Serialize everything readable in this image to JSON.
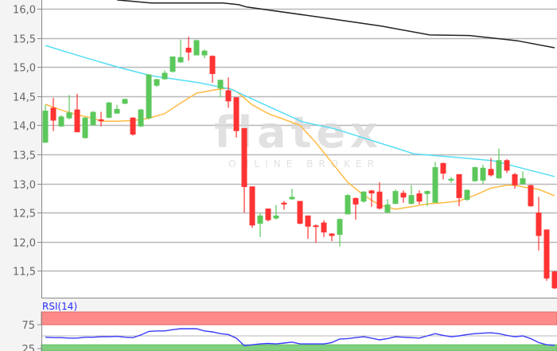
{
  "watermark": {
    "logo": "flatex",
    "tagline": "ONLINE BROKER"
  },
  "colors": {
    "up": "#5cc85c",
    "down": "#ff3333",
    "ma_short": "#ffbb44",
    "ma_mid": "#55ddf5",
    "ma_long": "#222222",
    "rsi_line": "#3a3aff",
    "rsi_overbought": "#ff8a8a",
    "rsi_oversold": "#7fd07f"
  },
  "chart_data": [
    {
      "type": "candlestick",
      "ylim": [
        11.04,
        16.15
      ],
      "yticks": [
        "16,0",
        "15,5",
        "15,0",
        "14,5",
        "14,0",
        "13,5",
        "13,0",
        "12,5",
        "12,0",
        "11,5"
      ],
      "ytick_values": [
        16.0,
        15.5,
        15.0,
        14.5,
        14.0,
        13.5,
        13.0,
        12.5,
        12.0,
        11.5
      ],
      "grid": true,
      "candles": [
        [
          13.7,
          14.35,
          13.7,
          14.25
        ],
        [
          14.3,
          14.47,
          13.9,
          14.08
        ],
        [
          13.98,
          14.17,
          13.97,
          14.15
        ],
        [
          14.12,
          14.52,
          14.1,
          14.22
        ],
        [
          14.27,
          14.54,
          13.88,
          13.88
        ],
        [
          13.78,
          14.14,
          13.77,
          14.13
        ],
        [
          14.0,
          14.24,
          14.0,
          14.23
        ],
        [
          14.1,
          14.23,
          13.98,
          14.07
        ],
        [
          14.13,
          14.4,
          14.12,
          14.39
        ],
        [
          14.2,
          14.35,
          14.2,
          14.28
        ],
        [
          14.37,
          14.46,
          14.36,
          14.45
        ],
        [
          14.13,
          14.14,
          13.82,
          13.84
        ],
        [
          13.98,
          14.28,
          13.97,
          14.27
        ],
        [
          14.12,
          14.88,
          14.1,
          14.87
        ],
        [
          14.68,
          14.8,
          14.66,
          14.79
        ],
        [
          14.79,
          14.94,
          14.78,
          14.9
        ],
        [
          14.92,
          15.18,
          14.9,
          15.18
        ],
        [
          15.08,
          15.47,
          15.07,
          15.17
        ],
        [
          15.33,
          15.52,
          15.11,
          15.25
        ],
        [
          15.2,
          15.47,
          15.2,
          15.46
        ],
        [
          15.2,
          15.3,
          15.15,
          15.28
        ],
        [
          15.19,
          15.2,
          14.73,
          14.88
        ],
        [
          14.63,
          14.78,
          14.48,
          14.78
        ],
        [
          14.6,
          14.82,
          14.3,
          14.41
        ],
        [
          14.48,
          14.48,
          13.79,
          13.9
        ],
        [
          13.95,
          13.95,
          12.5,
          12.94
        ],
        [
          12.95,
          12.95,
          12.24,
          12.28
        ],
        [
          12.31,
          12.49,
          12.08,
          12.45
        ],
        [
          12.57,
          12.57,
          12.35,
          12.37
        ],
        [
          12.4,
          12.63,
          12.38,
          12.45
        ],
        [
          12.67,
          12.7,
          12.55,
          12.64
        ],
        [
          12.73,
          12.91,
          12.72,
          12.77
        ],
        [
          12.7,
          12.7,
          12.3,
          12.31
        ],
        [
          12.45,
          12.45,
          12.05,
          12.26
        ],
        [
          12.28,
          12.3,
          11.98,
          12.26
        ],
        [
          12.33,
          12.37,
          12.08,
          12.16
        ],
        [
          12.14,
          12.15,
          12.01,
          12.1
        ],
        [
          12.12,
          12.4,
          11.92,
          12.39
        ],
        [
          12.47,
          12.82,
          12.47,
          12.8
        ],
        [
          12.75,
          12.76,
          12.38,
          12.64
        ],
        [
          12.69,
          12.87,
          12.67,
          12.86
        ],
        [
          12.88,
          12.89,
          12.6,
          12.83
        ],
        [
          12.86,
          13.02,
          12.55,
          12.57
        ],
        [
          12.5,
          12.73,
          12.5,
          12.64
        ],
        [
          12.65,
          12.9,
          12.65,
          12.87
        ],
        [
          12.84,
          12.88,
          12.67,
          12.76
        ],
        [
          12.65,
          12.97,
          12.64,
          12.8
        ],
        [
          12.83,
          12.88,
          12.64,
          12.69
        ],
        [
          12.82,
          12.88,
          12.61,
          12.87
        ],
        [
          12.67,
          13.37,
          12.67,
          13.28
        ],
        [
          13.35,
          13.36,
          13.07,
          13.17
        ],
        [
          13.05,
          13.11,
          13.01,
          13.08
        ],
        [
          13.16,
          13.16,
          12.61,
          12.75
        ],
        [
          12.72,
          12.9,
          12.7,
          12.89
        ],
        [
          13.04,
          13.29,
          13.03,
          13.28
        ],
        [
          13.05,
          13.32,
          12.99,
          13.27
        ],
        [
          13.25,
          13.44,
          13.12,
          13.14
        ],
        [
          13.09,
          13.6,
          13.08,
          13.4
        ],
        [
          13.4,
          13.42,
          13.18,
          13.22
        ],
        [
          13.16,
          13.18,
          12.91,
          12.97
        ],
        [
          12.99,
          13.21,
          12.98,
          13.09
        ],
        [
          12.97,
          12.98,
          12.6,
          12.61
        ],
        [
          12.5,
          12.77,
          11.85,
          12.1
        ],
        [
          12.21,
          12.21,
          11.33,
          11.37
        ],
        [
          11.49,
          11.5,
          11.19,
          11.2
        ]
      ],
      "candle_fields": [
        "open",
        "high",
        "low",
        "close"
      ],
      "moving_averages": [
        {
          "color_key": "ma_short",
          "points": [
            [
              0,
              14.36
            ],
            [
              2,
              14.26
            ],
            [
              4,
              14.18
            ],
            [
              6,
              14.12
            ],
            [
              7,
              14.07
            ],
            [
              9,
              14.07
            ],
            [
              11,
              14.08
            ],
            [
              13,
              14.12
            ],
            [
              15,
              14.2
            ],
            [
              17,
              14.38
            ],
            [
              19,
              14.55
            ],
            [
              21,
              14.6
            ],
            [
              23,
              14.64
            ],
            [
              24,
              14.58
            ],
            [
              26,
              14.35
            ],
            [
              28,
              14.2
            ],
            [
              30,
              14.1
            ],
            [
              32,
              14.0
            ],
            [
              34,
              13.7
            ],
            [
              36,
              13.36
            ],
            [
              38,
              13.02
            ],
            [
              40,
              12.8
            ],
            [
              42,
              12.63
            ],
            [
              44,
              12.56
            ],
            [
              46,
              12.6
            ],
            [
              48,
              12.65
            ],
            [
              50,
              12.67
            ],
            [
              52,
              12.7
            ],
            [
              54,
              12.8
            ],
            [
              56,
              12.92
            ],
            [
              58,
              12.97
            ],
            [
              59,
              12.97
            ],
            [
              60,
              12.94
            ],
            [
              62,
              12.9
            ],
            [
              64,
              12.79
            ]
          ]
        },
        {
          "color_key": "ma_mid",
          "points": [
            [
              0,
              15.37
            ],
            [
              4.3,
              15.19
            ],
            [
              9.3,
              14.99
            ],
            [
              13.3,
              14.85
            ],
            [
              19.3,
              14.73
            ],
            [
              23.3,
              14.62
            ],
            [
              27.3,
              14.37
            ],
            [
              32.3,
              14.06
            ],
            [
              36.3,
              13.94
            ],
            [
              40.3,
              13.77
            ],
            [
              46.3,
              13.51
            ],
            [
              52.3,
              13.44
            ],
            [
              56.3,
              13.39
            ],
            [
              60.3,
              13.25
            ],
            [
              64,
              13.12
            ]
          ]
        },
        {
          "color_key": "ma_long",
          "points": [
            [
              7,
              16.3
            ],
            [
              9.1,
              16.15
            ],
            [
              13.3,
              16.1
            ],
            [
              22.3,
              16.1
            ],
            [
              24.3,
              16.07
            ],
            [
              25.3,
              16.03
            ],
            [
              35.3,
              15.84
            ],
            [
              42.3,
              15.7
            ],
            [
              48.3,
              15.55
            ],
            [
              53.3,
              15.54
            ],
            [
              59.3,
              15.45
            ],
            [
              64,
              15.33
            ]
          ]
        }
      ]
    },
    {
      "type": "line",
      "title": "RSI(14)",
      "yticks": [
        "75",
        "25"
      ],
      "ytick_values": [
        75,
        25
      ],
      "bands": {
        "overbought": [
          75,
          100
        ],
        "oversold": [
          0,
          30
        ]
      },
      "values": [
        47,
        46,
        46,
        45,
        45,
        47,
        47,
        48,
        48,
        49,
        47,
        46,
        52,
        60,
        61,
        61,
        64,
        66,
        66,
        66,
        61,
        59,
        55,
        53,
        45,
        28,
        30,
        32,
        33,
        32,
        34,
        36,
        32,
        32,
        32,
        32,
        35,
        43,
        44,
        46,
        48,
        45,
        41,
        44,
        48,
        47,
        46,
        45,
        50,
        55,
        51,
        48,
        50,
        53,
        55,
        56,
        57,
        55,
        51,
        48,
        50,
        44,
        35,
        30,
        29
      ]
    }
  ]
}
